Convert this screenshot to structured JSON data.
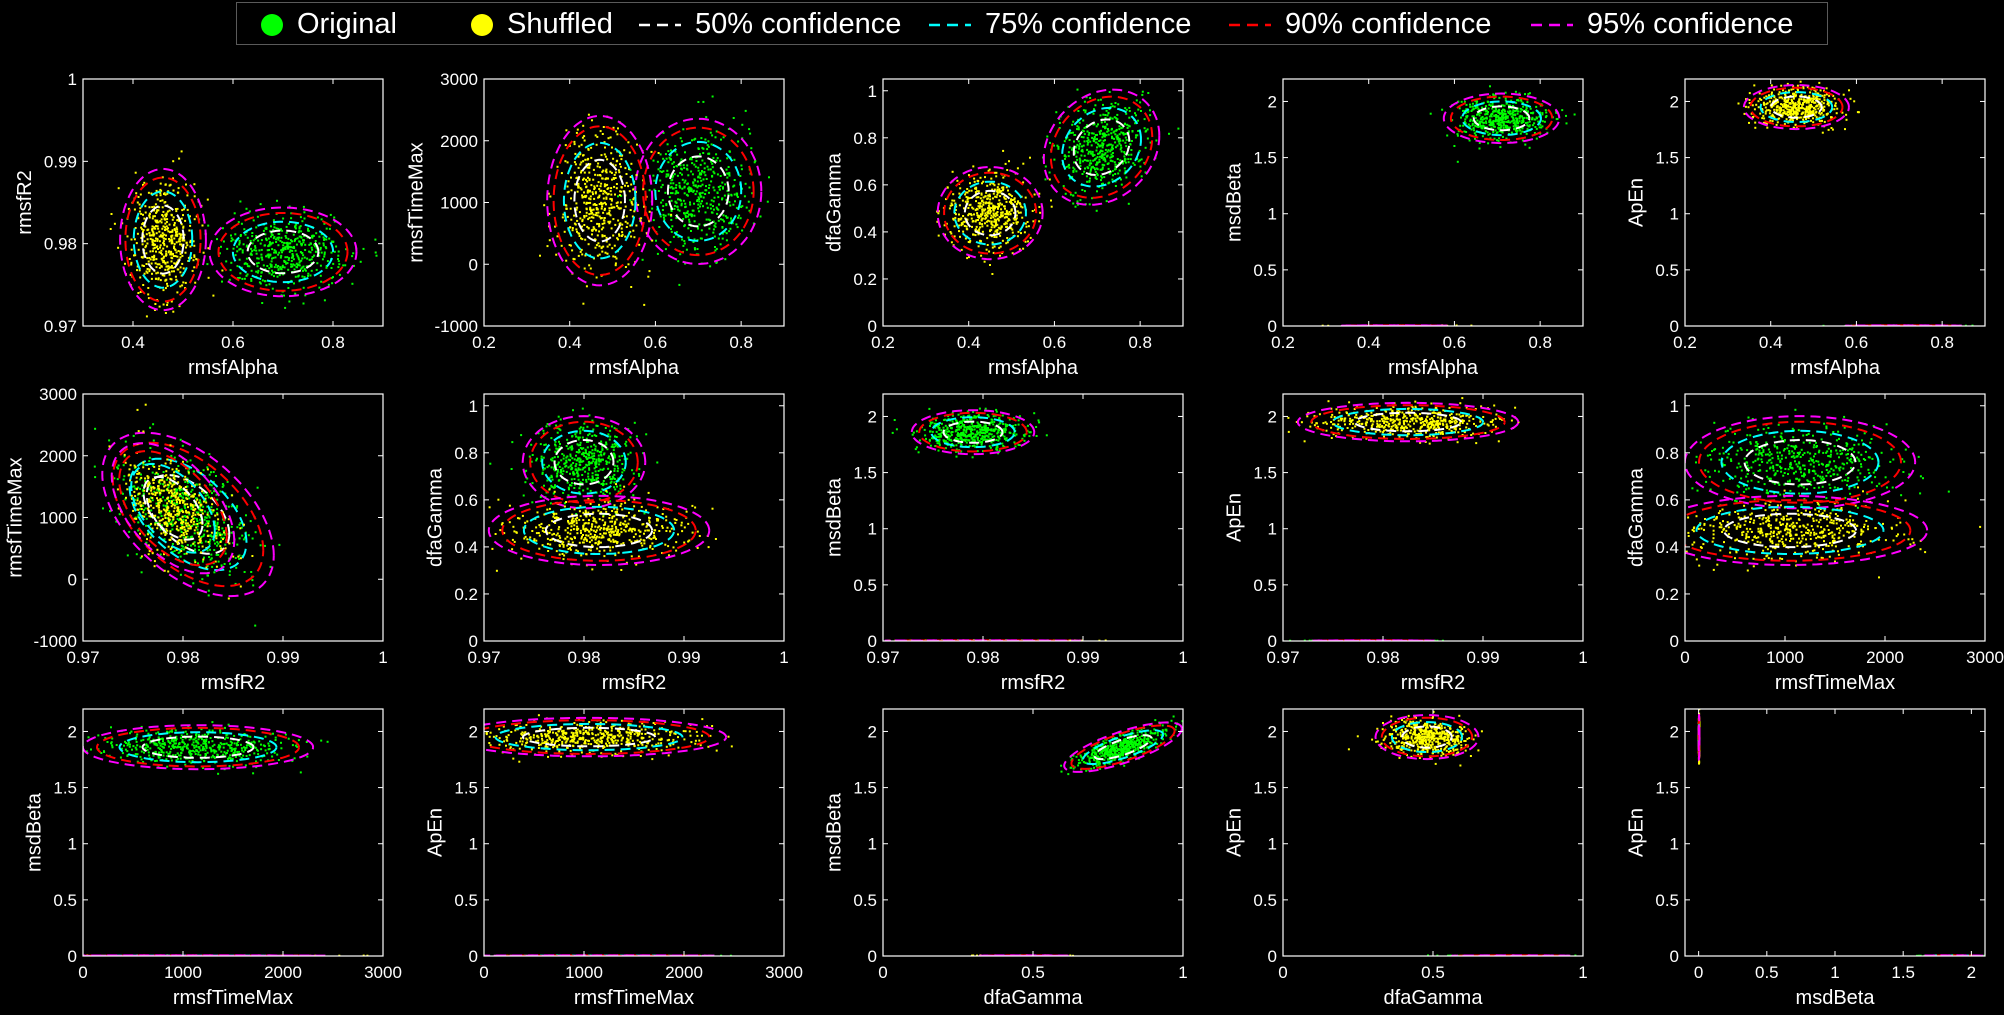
{
  "legend": {
    "items": [
      {
        "label": "Original",
        "kind": "marker",
        "color": "#00ff00"
      },
      {
        "label": "Shuffled",
        "kind": "marker",
        "color": "#ffff00"
      },
      {
        "label": "50% confidence",
        "kind": "dashed",
        "color": "#ffffff"
      },
      {
        "label": "75% confidence",
        "kind": "dashed",
        "color": "#00ffff"
      },
      {
        "label": "90% confidence",
        "kind": "dashed",
        "color": "#ff0000"
      },
      {
        "label": "95% confidence",
        "kind": "dashed",
        "color": "#ff00ff"
      }
    ]
  },
  "chart_data": [
    {
      "type": "scatter",
      "xlabel": "rmsfAlpha",
      "ylabel": "rmsfR2",
      "xlim": [
        0.3,
        0.9
      ],
      "ylim": [
        0.97,
        1
      ],
      "xticks": [
        "0.4",
        "0.6",
        "0.8"
      ],
      "xtick_values": [
        0.4,
        0.6,
        0.8
      ],
      "yticks": [
        "0.97",
        "0.98",
        "0.99",
        "1"
      ],
      "ytick_values": [
        0.97,
        0.98,
        0.99,
        1
      ],
      "series": [
        {
          "name": "Original",
          "color": "#00ff00",
          "center": [
            0.7,
            0.979
          ],
          "spread": [
            0.06,
            0.0022
          ],
          "corr": 0,
          "n": 500
        },
        {
          "name": "Shuffled",
          "color": "#ffff00",
          "center": [
            0.46,
            0.9805
          ],
          "spread": [
            0.035,
            0.0035
          ],
          "corr": 0,
          "n": 500
        }
      ]
    },
    {
      "type": "scatter",
      "xlabel": "rmsfAlpha",
      "ylabel": "rmsfTimeMax",
      "xlim": [
        0.2,
        0.9
      ],
      "ylim": [
        -1000,
        3000
      ],
      "xticks": [
        "0.2",
        "0.4",
        "0.6",
        "0.8"
      ],
      "xtick_values": [
        0.2,
        0.4,
        0.6,
        0.8
      ],
      "yticks": [
        "-1000",
        "0",
        "1000",
        "2000",
        "3000"
      ],
      "ytick_values": [
        -1000,
        0,
        1000,
        2000,
        3000
      ],
      "series": [
        {
          "name": "Original",
          "color": "#00ff00",
          "center": [
            0.7,
            1180
          ],
          "spread": [
            0.06,
            480
          ],
          "corr": 0,
          "n": 500
        },
        {
          "name": "Shuffled",
          "color": "#ffff00",
          "center": [
            0.47,
            1030
          ],
          "spread": [
            0.05,
            560
          ],
          "corr": 0,
          "n": 500
        }
      ]
    },
    {
      "type": "scatter",
      "xlabel": "rmsfAlpha",
      "ylabel": "dfaGamma",
      "xlim": [
        0.2,
        0.9
      ],
      "ylim": [
        0,
        1.05
      ],
      "xticks": [
        "0.2",
        "0.4",
        "0.6",
        "0.8"
      ],
      "xtick_values": [
        0.2,
        0.4,
        0.6,
        0.8
      ],
      "yticks": [
        "0",
        "0.2",
        "0.4",
        "0.6",
        "0.8",
        "1"
      ],
      "ytick_values": [
        0,
        0.2,
        0.4,
        0.6,
        0.8,
        1
      ],
      "series": [
        {
          "name": "Original",
          "color": "#00ff00",
          "center": [
            0.71,
            0.76
          ],
          "spread": [
            0.055,
            0.1
          ],
          "corr": 0.2,
          "n": 500
        },
        {
          "name": "Shuffled",
          "color": "#ffff00",
          "center": [
            0.45,
            0.48
          ],
          "spread": [
            0.05,
            0.08
          ],
          "corr": 0,
          "n": 500
        }
      ]
    },
    {
      "type": "scatter",
      "xlabel": "rmsfAlpha",
      "ylabel": "msdBeta",
      "xlim": [
        0.2,
        0.9
      ],
      "ylim": [
        0,
        2.2
      ],
      "xticks": [
        "0.2",
        "0.4",
        "0.6",
        "0.8"
      ],
      "xtick_values": [
        0.2,
        0.4,
        0.6,
        0.8
      ],
      "yticks": [
        "0",
        "0.5",
        "1",
        "1.5",
        "2"
      ],
      "ytick_values": [
        0,
        0.5,
        1,
        1.5,
        2
      ],
      "series": [
        {
          "name": "Original",
          "color": "#00ff00",
          "center": [
            0.71,
            1.85
          ],
          "spread": [
            0.055,
            0.09
          ],
          "corr": 0,
          "n": 500
        },
        {
          "name": "Shuffled",
          "color": "#ffff00",
          "center": [
            0.46,
            0.003
          ],
          "spread": [
            0.05,
            0.001
          ],
          "corr": 0,
          "n": 400
        }
      ]
    },
    {
      "type": "scatter",
      "xlabel": "rmsfAlpha",
      "ylabel": "ApEn",
      "xlim": [
        0.2,
        0.9
      ],
      "ylim": [
        0,
        2.2
      ],
      "xticks": [
        "0.2",
        "0.4",
        "0.6",
        "0.8"
      ],
      "xtick_values": [
        0.2,
        0.4,
        0.6,
        0.8
      ],
      "yticks": [
        "0",
        "0.5",
        "1",
        "1.5",
        "2"
      ],
      "ytick_values": [
        0,
        0.5,
        1,
        1.5,
        2
      ],
      "series": [
        {
          "name": "Original",
          "color": "#00ff00",
          "center": [
            0.71,
            0.003
          ],
          "spread": [
            0.055,
            0.001
          ],
          "corr": 0,
          "n": 400
        },
        {
          "name": "Shuffled",
          "color": "#ffff00",
          "center": [
            0.46,
            1.95
          ],
          "spread": [
            0.05,
            0.08
          ],
          "corr": 0,
          "n": 500
        }
      ]
    },
    {
      "type": "scatter",
      "xlabel": "rmsfR2",
      "ylabel": "rmsfTimeMax",
      "xlim": [
        0.97,
        1
      ],
      "ylim": [
        -1000,
        3000
      ],
      "xticks": [
        "0.97",
        "0.98",
        "0.99",
        "1"
      ],
      "xtick_values": [
        0.97,
        0.98,
        0.99,
        1
      ],
      "yticks": [
        "-1000",
        "0",
        "1000",
        "2000",
        "3000"
      ],
      "ytick_values": [
        -1000,
        0,
        1000,
        2000,
        3000
      ],
      "series": [
        {
          "name": "Original",
          "color": "#00ff00",
          "center": [
            0.9805,
            1050
          ],
          "spread": [
            0.0035,
            540
          ],
          "corr": -0.5,
          "n": 500
        },
        {
          "name": "Shuffled",
          "color": "#ffff00",
          "center": [
            0.979,
            1150
          ],
          "spread": [
            0.0025,
            430
          ],
          "corr": -0.5,
          "n": 500
        }
      ]
    },
    {
      "type": "scatter",
      "xlabel": "rmsfR2",
      "ylabel": "dfaGamma",
      "xlim": [
        0.97,
        1
      ],
      "ylim": [
        0,
        1.05
      ],
      "xticks": [
        "0.97",
        "0.98",
        "0.99",
        "1"
      ],
      "xtick_values": [
        0.97,
        0.98,
        0.99,
        1
      ],
      "yticks": [
        "0",
        "0.2",
        "0.4",
        "0.6",
        "0.8",
        "1"
      ],
      "ytick_values": [
        0,
        0.2,
        0.4,
        0.6,
        0.8,
        1
      ],
      "series": [
        {
          "name": "Original",
          "color": "#00ff00",
          "center": [
            0.98,
            0.76
          ],
          "spread": [
            0.0025,
            0.08
          ],
          "corr": 0,
          "n": 500
        },
        {
          "name": "Shuffled",
          "color": "#ffff00",
          "center": [
            0.9815,
            0.47
          ],
          "spread": [
            0.0045,
            0.06
          ],
          "corr": 0,
          "n": 500
        }
      ]
    },
    {
      "type": "scatter",
      "xlabel": "rmsfR2",
      "ylabel": "msdBeta",
      "xlim": [
        0.97,
        1
      ],
      "ylim": [
        0,
        2.2
      ],
      "xticks": [
        "0.97",
        "0.98",
        "0.99",
        "1"
      ],
      "xtick_values": [
        0.97,
        0.98,
        0.99,
        1
      ],
      "yticks": [
        "0",
        "0.5",
        "1",
        "1.5",
        "2"
      ],
      "ytick_values": [
        0,
        0.5,
        1,
        1.5,
        2
      ],
      "series": [
        {
          "name": "Original",
          "color": "#00ff00",
          "center": [
            0.979,
            1.86
          ],
          "spread": [
            0.0025,
            0.08
          ],
          "corr": 0,
          "n": 500
        },
        {
          "name": "Shuffled",
          "color": "#ffff00",
          "center": [
            0.98,
            0.003
          ],
          "spread": [
            0.004,
            0.001
          ],
          "corr": 0,
          "n": 400
        }
      ]
    },
    {
      "type": "scatter",
      "xlabel": "rmsfR2",
      "ylabel": "ApEn",
      "xlim": [
        0.97,
        1
      ],
      "ylim": [
        0,
        2.2
      ],
      "xticks": [
        "0.97",
        "0.98",
        "0.99",
        "1"
      ],
      "xtick_values": [
        0.97,
        0.98,
        0.99,
        1
      ],
      "yticks": [
        "0",
        "0.5",
        "1",
        "1.5",
        "2"
      ],
      "ytick_values": [
        0,
        0.5,
        1,
        1.5,
        2
      ],
      "series": [
        {
          "name": "Original",
          "color": "#00ff00",
          "center": [
            0.979,
            0.003
          ],
          "spread": [
            0.0025,
            0.001
          ],
          "corr": 0,
          "n": 400
        },
        {
          "name": "Shuffled",
          "color": "#ffff00",
          "center": [
            0.9825,
            1.95
          ],
          "spread": [
            0.0045,
            0.07
          ],
          "corr": 0,
          "n": 500
        }
      ]
    },
    {
      "type": "scatter",
      "xlabel": "rmsfTimeMax",
      "ylabel": "dfaGamma",
      "xlim": [
        0,
        3000
      ],
      "ylim": [
        0,
        1.05
      ],
      "xticks": [
        "0",
        "1000",
        "2000",
        "3000"
      ],
      "xtick_values": [
        0,
        1000,
        2000,
        3000
      ],
      "yticks": [
        "0",
        "0.2",
        "0.4",
        "0.6",
        "0.8",
        "1"
      ],
      "ytick_values": [
        0,
        0.2,
        0.4,
        0.6,
        0.8,
        1
      ],
      "series": [
        {
          "name": "Original",
          "color": "#00ff00",
          "center": [
            1150,
            0.76
          ],
          "spread": [
            470,
            0.08
          ],
          "corr": 0,
          "n": 500
        },
        {
          "name": "Shuffled",
          "color": "#ffff00",
          "center": [
            1050,
            0.47
          ],
          "spread": [
            560,
            0.06
          ],
          "corr": 0,
          "n": 500
        }
      ]
    },
    {
      "type": "scatter",
      "xlabel": "rmsfTimeMax",
      "ylabel": "msdBeta",
      "xlim": [
        0,
        3000
      ],
      "ylim": [
        0,
        2.2
      ],
      "xticks": [
        "0",
        "1000",
        "2000",
        "3000"
      ],
      "xtick_values": [
        0,
        1000,
        2000,
        3000
      ],
      "yticks": [
        "0",
        "0.5",
        "1",
        "1.5",
        "2"
      ],
      "ytick_values": [
        0,
        0.5,
        1,
        1.5,
        2
      ],
      "series": [
        {
          "name": "Original",
          "color": "#00ff00",
          "center": [
            1150,
            1.86
          ],
          "spread": [
            470,
            0.08
          ],
          "corr": 0,
          "n": 500
        },
        {
          "name": "Shuffled",
          "color": "#ffff00",
          "center": [
            1050,
            0.003
          ],
          "spread": [
            560,
            0.001
          ],
          "corr": 0,
          "n": 400
        }
      ]
    },
    {
      "type": "scatter",
      "xlabel": "rmsfTimeMax",
      "ylabel": "ApEn",
      "xlim": [
        0,
        3000
      ],
      "ylim": [
        0,
        2.2
      ],
      "xticks": [
        "0",
        "1000",
        "2000",
        "3000"
      ],
      "xtick_values": [
        0,
        1000,
        2000,
        3000
      ],
      "yticks": [
        "0",
        "0.5",
        "1",
        "1.5",
        "2"
      ],
      "ytick_values": [
        0,
        0.5,
        1,
        1.5,
        2
      ],
      "series": [
        {
          "name": "Original",
          "color": "#00ff00",
          "center": [
            1150,
            0.003
          ],
          "spread": [
            470,
            0.001
          ],
          "corr": 0,
          "n": 400
        },
        {
          "name": "Shuffled",
          "color": "#ffff00",
          "center": [
            1050,
            1.95
          ],
          "spread": [
            560,
            0.07
          ],
          "corr": 0,
          "n": 500
        }
      ]
    },
    {
      "type": "scatter",
      "xlabel": "dfaGamma",
      "ylabel": "msdBeta",
      "xlim": [
        0,
        1
      ],
      "ylim": [
        0,
        2.2
      ],
      "xticks": [
        "0",
        "0.5",
        "1"
      ],
      "xtick_values": [
        0,
        0.5,
        1
      ],
      "yticks": [
        "0",
        "0.5",
        "1",
        "1.5",
        "2"
      ],
      "ytick_values": [
        0,
        0.5,
        1,
        1.5,
        2
      ],
      "series": [
        {
          "name": "Original",
          "color": "#00ff00",
          "center": [
            0.8,
            1.86
          ],
          "spread": [
            0.08,
            0.09
          ],
          "corr": 0.75,
          "n": 500
        },
        {
          "name": "Shuffled",
          "color": "#ffff00",
          "center": [
            0.47,
            0.003
          ],
          "spread": [
            0.06,
            0.001
          ],
          "corr": 0,
          "n": 400
        }
      ]
    },
    {
      "type": "scatter",
      "xlabel": "dfaGamma",
      "ylabel": "ApEn",
      "xlim": [
        0,
        1
      ],
      "ylim": [
        0,
        2.2
      ],
      "xticks": [
        "0",
        "0.5",
        "1"
      ],
      "xtick_values": [
        0,
        0.5,
        1
      ],
      "yticks": [
        "0",
        "0.5",
        "1",
        "1.5",
        "2"
      ],
      "ytick_values": [
        0,
        0.5,
        1,
        1.5,
        2
      ],
      "series": [
        {
          "name": "Original",
          "color": "#00ff00",
          "center": [
            0.76,
            0.003
          ],
          "spread": [
            0.08,
            0.001
          ],
          "corr": 0,
          "n": 400
        },
        {
          "name": "Shuffled",
          "color": "#ffff00",
          "center": [
            0.48,
            1.95
          ],
          "spread": [
            0.07,
            0.08
          ],
          "corr": 0,
          "n": 500
        }
      ]
    },
    {
      "type": "scatter",
      "xlabel": "msdBeta",
      "ylabel": "ApEn",
      "xlim": [
        -0.1,
        2.1
      ],
      "ylim": [
        0,
        2.2
      ],
      "xticks": [
        "0",
        "0.5",
        "1",
        "1.5",
        "2"
      ],
      "xtick_values": [
        0,
        0.5,
        1,
        1.5,
        2
      ],
      "yticks": [
        "0",
        "0.5",
        "1",
        "1.5",
        "2"
      ],
      "ytick_values": [
        0,
        0.5,
        1,
        1.5,
        2
      ],
      "series": [
        {
          "name": "Original",
          "color": "#00ff00",
          "center": [
            1.86,
            0.003
          ],
          "spread": [
            0.09,
            0.001
          ],
          "corr": 0,
          "n": 400
        },
        {
          "name": "Shuffled",
          "color": "#ffff00",
          "center": [
            0.003,
            1.95
          ],
          "spread": [
            0.001,
            0.08
          ],
          "corr": 0,
          "n": 500
        }
      ]
    }
  ]
}
